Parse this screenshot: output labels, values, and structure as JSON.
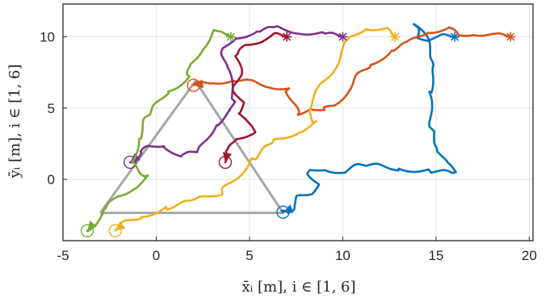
{
  "chart_data": {
    "type": "line",
    "xlabel": "x̄ᵢ [m],    i ∈ [1, 6]",
    "ylabel": "ȳᵢ [m],    i ∈ [1, 6]",
    "xlim": [
      -5,
      20.2
    ],
    "ylim": [
      -4.3,
      12.3
    ],
    "xticks": [
      "-5",
      "0",
      "5",
      "10",
      "15",
      "20"
    ],
    "yticks": [
      "0",
      "5",
      "10"
    ],
    "grid": true,
    "formation": {
      "color": "#a6a6a6",
      "triangle": [
        [
          -3.0,
          -2.35
        ],
        [
          6.8,
          -2.35
        ],
        [
          2.1,
          6.9
        ],
        [
          -3.0,
          -2.35
        ]
      ]
    },
    "series": [
      {
        "color": "#0072bd",
        "start": [
          16.0,
          10.0
        ],
        "target": [
          6.8,
          -2.3
        ],
        "path": [
          [
            16.0,
            10.0
          ],
          [
            15.2,
            10.0
          ],
          [
            14.6,
            9.9
          ],
          [
            14.0,
            10.0
          ],
          [
            13.9,
            10.8
          ],
          [
            14.5,
            9.8
          ],
          [
            15.0,
            8.0
          ],
          [
            14.6,
            6.0
          ],
          [
            14.8,
            3.5
          ],
          [
            15.2,
            2.0
          ],
          [
            15.6,
            1.0
          ],
          [
            16.0,
            0.4
          ],
          [
            14.5,
            0.6
          ],
          [
            13.0,
            0.8
          ],
          [
            11.0,
            1.0
          ],
          [
            10.0,
            0.5
          ],
          [
            9.0,
            0.8
          ],
          [
            8.2,
            0.5
          ],
          [
            8.6,
            -0.4
          ],
          [
            8.2,
            -1.0
          ],
          [
            7.6,
            -1.3
          ],
          [
            7.3,
            -2.0
          ],
          [
            7.0,
            -2.2
          ],
          [
            6.8,
            -2.3
          ]
        ]
      },
      {
        "color": "#d95319",
        "start": [
          19.0,
          10.0
        ],
        "target": [
          2.0,
          6.6
        ],
        "path": [
          [
            19.0,
            10.0
          ],
          [
            18.0,
            10.1
          ],
          [
            17.0,
            10.3
          ],
          [
            16.2,
            10.1
          ],
          [
            15.6,
            10.6
          ],
          [
            14.5,
            10.4
          ],
          [
            13.5,
            9.5
          ],
          [
            12.5,
            9.0
          ],
          [
            11.5,
            8.0
          ],
          [
            10.8,
            7.2
          ],
          [
            10.2,
            6.2
          ],
          [
            9.6,
            5.2
          ],
          [
            8.9,
            4.8
          ],
          [
            8.2,
            5.1
          ],
          [
            7.6,
            4.5
          ],
          [
            7.0,
            6.4
          ],
          [
            6.0,
            6.6
          ],
          [
            5.0,
            6.8
          ],
          [
            4.0,
            7.0
          ],
          [
            3.0,
            6.8
          ],
          [
            2.0,
            6.6
          ]
        ]
      },
      {
        "color": "#edb120",
        "start": [
          12.8,
          10.0
        ],
        "target": [
          -2.2,
          -3.6
        ],
        "path": [
          [
            12.8,
            10.0
          ],
          [
            12.3,
            10.5
          ],
          [
            11.2,
            10.7
          ],
          [
            10.4,
            9.9
          ],
          [
            9.9,
            8.8
          ],
          [
            9.4,
            7.6
          ],
          [
            8.8,
            6.4
          ],
          [
            8.3,
            5.5
          ],
          [
            8.1,
            4.9
          ],
          [
            8.6,
            3.9
          ],
          [
            7.6,
            3.4
          ],
          [
            6.3,
            2.6
          ],
          [
            5.1,
            1.3
          ],
          [
            3.5,
            -0.9
          ],
          [
            1.9,
            -1.6
          ],
          [
            0.4,
            -2.0
          ],
          [
            -0.8,
            -2.6
          ],
          [
            -1.7,
            -3.1
          ],
          [
            -2.2,
            -3.6
          ]
        ]
      },
      {
        "color": "#7e2f8e",
        "start": [
          10.0,
          10.0
        ],
        "target": [
          -1.4,
          1.2
        ],
        "path": [
          [
            10.0,
            10.0
          ],
          [
            8.8,
            10.2
          ],
          [
            7.6,
            10.4
          ],
          [
            6.4,
            10.6
          ],
          [
            5.3,
            10.3
          ],
          [
            4.2,
            10.0
          ],
          [
            3.6,
            9.0
          ],
          [
            3.8,
            7.7
          ],
          [
            4.2,
            5.6
          ],
          [
            4.0,
            4.7
          ],
          [
            3.1,
            3.8
          ],
          [
            2.3,
            1.9
          ],
          [
            1.2,
            1.6
          ],
          [
            0.4,
            2.5
          ],
          [
            -0.4,
            2.3
          ],
          [
            -0.9,
            1.7
          ],
          [
            -1.4,
            1.2
          ]
        ]
      },
      {
        "color": "#77ac30",
        "start": [
          4.0,
          10.0
        ],
        "target": [
          -3.7,
          -3.6
        ],
        "path": [
          [
            4.0,
            10.0
          ],
          [
            3.1,
            10.3
          ],
          [
            2.4,
            9.2
          ],
          [
            1.9,
            8.0
          ],
          [
            1.7,
            7.1
          ],
          [
            0.6,
            6.2
          ],
          [
            -0.5,
            4.3
          ],
          [
            -1.0,
            2.7
          ],
          [
            -1.3,
            1.2
          ],
          [
            -0.4,
            0.1
          ],
          [
            -1.3,
            -0.6
          ],
          [
            -2.1,
            -1.2
          ],
          [
            -2.8,
            -2.3
          ],
          [
            -3.3,
            -3.0
          ],
          [
            -3.7,
            -3.6
          ]
        ]
      },
      {
        "color": "#a2142f",
        "start": [
          7.0,
          10.0
        ],
        "target": [
          3.7,
          1.2
        ],
        "path": [
          [
            7.0,
            10.0
          ],
          [
            6.3,
            10.1
          ],
          [
            5.6,
            9.8
          ],
          [
            4.8,
            9.4
          ],
          [
            4.3,
            8.5
          ],
          [
            4.5,
            7.5
          ],
          [
            4.2,
            6.4
          ],
          [
            4.6,
            5.3
          ],
          [
            4.3,
            4.6
          ],
          [
            4.9,
            4.3
          ],
          [
            5.2,
            3.4
          ],
          [
            4.3,
            2.8
          ],
          [
            3.8,
            1.8
          ],
          [
            3.7,
            1.2
          ]
        ]
      }
    ]
  }
}
